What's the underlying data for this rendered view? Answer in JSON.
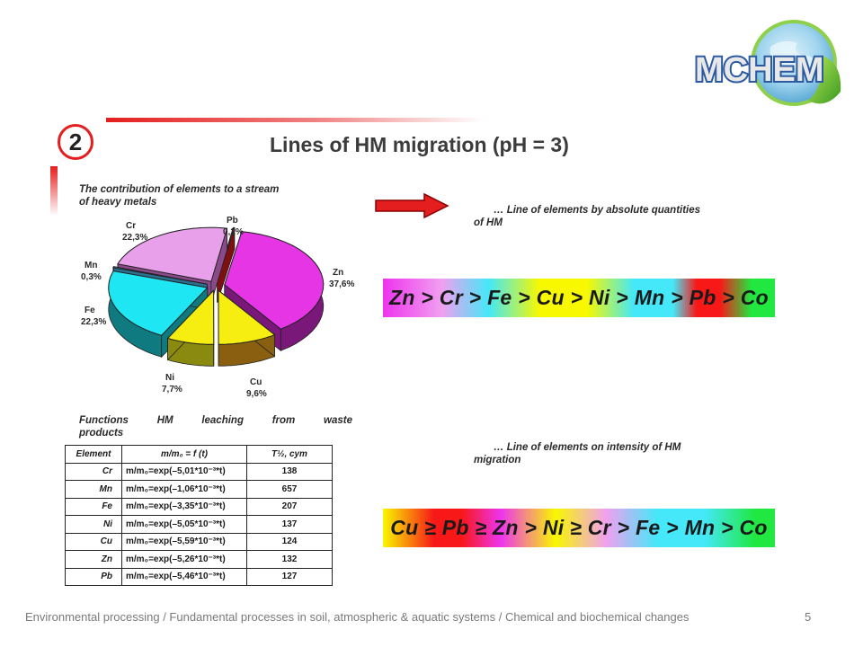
{
  "slide": {
    "number": "2",
    "title": "Lines of HM migration (pH = 3)",
    "logo_text": "MCHEM"
  },
  "pie_title": [
    "The contribution of elements to a stream",
    "of heavy metals"
  ],
  "chart_data": [
    {
      "type": "pie",
      "title": "The contribution of elements to a stream of heavy metals",
      "categories": [
        "Zn",
        "Cu",
        "Ni",
        "Fe",
        "Mn",
        "Cr",
        "Pb"
      ],
      "values": [
        37.6,
        9.6,
        7.7,
        22.3,
        0.3,
        22.3,
        0.2
      ],
      "labels": [
        "37,6%",
        "9,6%",
        "7,7%",
        "22,3%",
        "0,3%",
        "22,3%",
        "0,2%"
      ],
      "colors": [
        "#e535e5",
        "#f5ee10",
        "#f5ee10",
        "#1ee6f2",
        "#55d0f0",
        "#e9a0ea",
        "#e02020"
      ],
      "side_colors": [
        "#7a187a",
        "#8a6010",
        "#8a8a10",
        "#0f7a80",
        "#2a7090",
        "#8a4a8a",
        "#801010"
      ]
    },
    {
      "type": "table",
      "title": "Functions HM leaching from waste products",
      "columns": [
        "Element",
        "m/m₀ = f (t)",
        "T½, сут"
      ],
      "rows": [
        [
          "Cr",
          "m/m₀=exp(–5,01*10⁻³*t)",
          "138"
        ],
        [
          "Mn",
          "m/m₀=exp(–1,06*10⁻³*t)",
          "657"
        ],
        [
          "Fe",
          "m/m₀=exp(–3,35*10⁻³*t)",
          "207"
        ],
        [
          "Ni",
          "m/m₀=exp(–5,05*10⁻³*t)",
          "137"
        ],
        [
          "Cu",
          "m/m₀=exp(–5,59*10⁻³*t)",
          "124"
        ],
        [
          "Zn",
          "m/m₀=exp(–5,26*10⁻³*t)",
          "132"
        ],
        [
          "Pb",
          "m/m₀=exp(–5,46*10⁻³*t)",
          "127"
        ]
      ]
    }
  ],
  "func_title": {
    "words": [
      "Functions",
      "HM",
      "leaching",
      "from",
      "waste"
    ],
    "line2": "products"
  },
  "line1_title": [
    "… Line of elements by absolute quantities",
    "of HM"
  ],
  "line1_text": "Zn > Cr > Fe > Cu > Ni > Mn > Pb > Co",
  "line2_title": [
    "… Line of elements on intensity of HM",
    "migration"
  ],
  "line2_text": "Cu ≥ Pb ≥ Zn > Ni ≥ Cr > Fe > Mn > Co",
  "footer": "Environmental processing / Fundamental processes in soil, atmospheric & aquatic systems / Chemical and biochemical changes",
  "page_number": "5"
}
